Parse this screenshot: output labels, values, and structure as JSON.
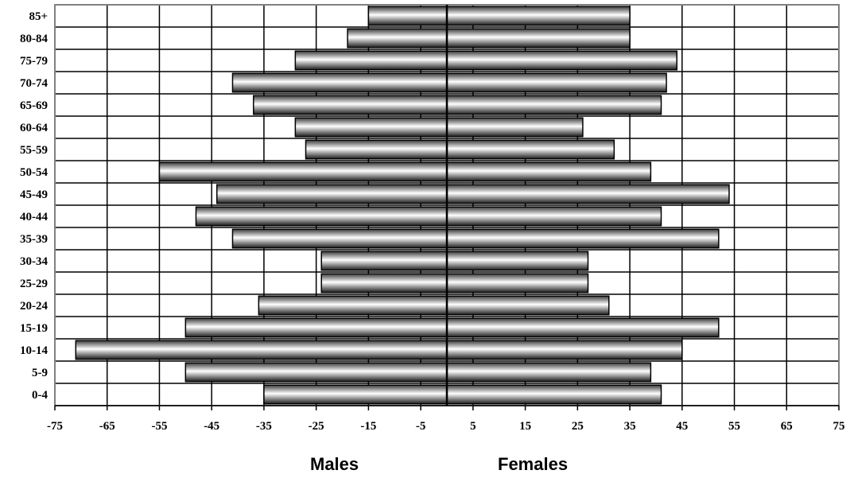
{
  "chart_data": {
    "type": "bar",
    "orientation": "horizontal",
    "categories": [
      "0-4",
      "5-9",
      "10-14",
      "15-19",
      "20-24",
      "25-29",
      "30-34",
      "35-39",
      "40-44",
      "45-49",
      "50-54",
      "55-59",
      "60-64",
      "65-69",
      "70-74",
      "75-79",
      "80-84",
      "85+"
    ],
    "series": [
      {
        "values": [
          -35,
          -50,
          -71,
          -50,
          -36,
          -24,
          -24,
          -41,
          -48,
          -44,
          -55,
          -27,
          -29,
          -37,
          -41,
          -29,
          -19,
          -15
        ]
      },
      {
        "values": [
          41,
          39,
          45,
          52,
          31,
          27,
          27,
          52,
          41,
          54,
          39,
          32,
          26,
          41,
          42,
          44,
          35,
          35
        ]
      }
    ],
    "x_ticks": [
      -75,
      -65,
      -55,
      -45,
      -35,
      -25,
      -15,
      -5,
      5,
      15,
      25,
      35,
      45,
      55,
      65,
      75
    ],
    "xlim": [
      -75,
      75
    ],
    "grid": true,
    "group_labels": [
      "Males",
      "Females"
    ],
    "colors": {
      "bar_dark": "#1a1a1a",
      "bar_light": "#ffffff",
      "grid": "#000000",
      "frame": "#808080"
    }
  }
}
